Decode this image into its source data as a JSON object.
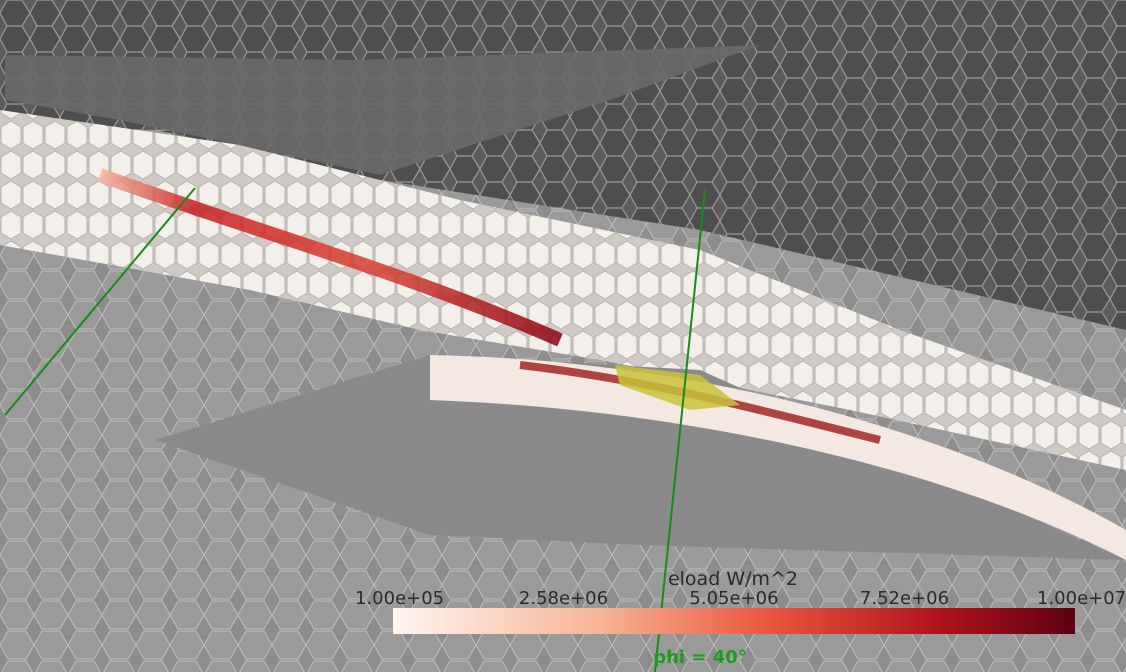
{
  "colorbar": {
    "title": "eload W/m^2",
    "ticks": [
      "1.00e+05",
      "2.58e+06",
      "5.05e+06",
      "7.52e+06",
      "1.00e+07"
    ]
  },
  "annotation": "phi = 40°"
}
